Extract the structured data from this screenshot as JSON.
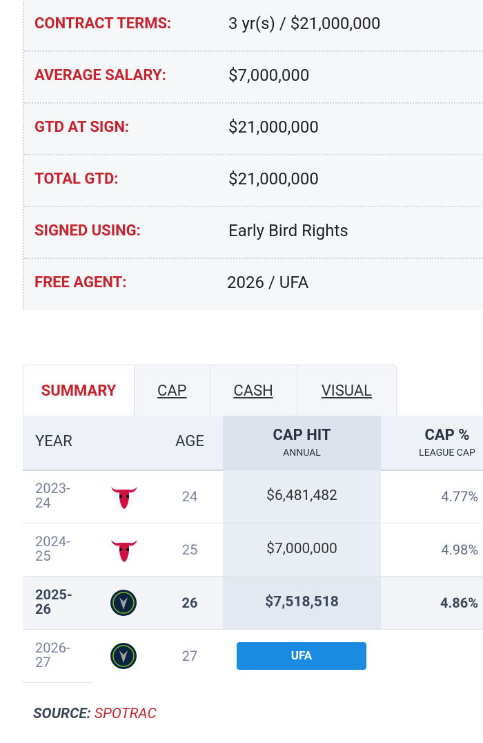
{
  "contract": {
    "rows": [
      {
        "label": "CONTRACT TERMS:",
        "value": "3 yr(s) / $21,000,000"
      },
      {
        "label": "AVERAGE SALARY:",
        "value": "$7,000,000"
      },
      {
        "label": "GTD AT SIGN:",
        "value": "$21,000,000"
      },
      {
        "label": "TOTAL GTD:",
        "value": "$21,000,000"
      },
      {
        "label": "SIGNED USING:",
        "value": "Early Bird Rights"
      },
      {
        "label": "FREE AGENT:",
        "value": "2026 / UFA"
      }
    ]
  },
  "tabs": [
    "SUMMARY",
    "CAP",
    "CASH",
    "VISUAL"
  ],
  "table": {
    "header": {
      "year": "YEAR",
      "age": "AGE",
      "cap_hit": "CAP HIT",
      "cap_hit_sub": "ANNUAL",
      "cap_pct": "CAP %",
      "cap_pct_sub": "LEAGUE CAP"
    },
    "rows": [
      {
        "year": "2023-24",
        "age": "24",
        "cap_hit": "$6,481,482",
        "cap_pct": "4.77%"
      },
      {
        "year": "2024-25",
        "age": "25",
        "cap_hit": "$7,000,000",
        "cap_pct": "4.98%"
      },
      {
        "year": "2025-26",
        "age": "26",
        "cap_hit": "$7,518,518",
        "cap_pct": "4.86%"
      },
      {
        "year": "2026-27",
        "age": "27",
        "cap_hit": "UFA"
      }
    ]
  },
  "source": {
    "label": "SOURCE:",
    "name": "SPOTRAC"
  }
}
